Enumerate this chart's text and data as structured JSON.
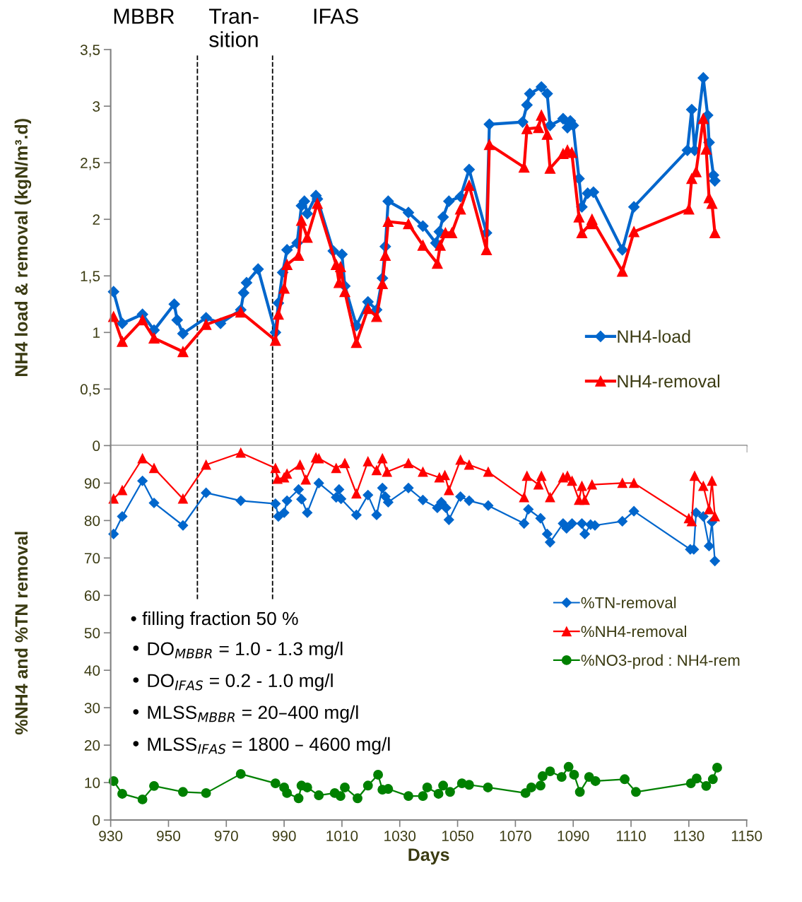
{
  "chart_data": [
    {
      "type": "line",
      "ylabel": "NH4 load & removal (kgN/m³.d)",
      "xlim": [
        930,
        1150
      ],
      "xticks": [
        930,
        950,
        970,
        990,
        1010,
        1030,
        1050,
        1070,
        1090,
        1110,
        1130,
        1150
      ],
      "ylim": [
        0,
        3.5
      ],
      "yticks": [
        0,
        {
          "value": 0.5,
          "label": "0,5"
        },
        1,
        {
          "value": 1.5,
          "label": "1,5"
        },
        2,
        {
          "value": 2.5,
          "label": "2,5"
        },
        3,
        {
          "value": 3.5,
          "label": "3,5"
        }
      ],
      "tick_labels": "y",
      "grid": false,
      "legend": "lower right",
      "line_style": "solid",
      "annotations": [
        "MBBR",
        "Tran-\nsition",
        "IFAS"
      ],
      "ref_lines": [
        {
          "axis": "x",
          "value": 960,
          "color": "#000000",
          "line_style": "dashed"
        },
        {
          "axis": "x",
          "value": 986,
          "color": "#000000",
          "line_style": "dashed"
        }
      ],
      "series": [
        {
          "name": "NH4-load",
          "color": "#0066cc",
          "marker": "diamond",
          "x": [
            931,
            934,
            941,
            945,
            952,
            953,
            955,
            963,
            968,
            975,
            976,
            977,
            981,
            987,
            988,
            989.5,
            991,
            994.5,
            996,
            997,
            998,
            1001,
            1001.5,
            1007,
            1010,
            1011,
            1015,
            1019,
            1022,
            1024,
            1025,
            1026,
            1033,
            1038,
            1042.5,
            1043.7,
            1045,
            1047,
            1051,
            1054,
            1060,
            1061,
            1072.5,
            1074,
            1075,
            1079,
            1081,
            1082,
            1086.5,
            1088,
            1089,
            1090,
            1092,
            1093,
            1095,
            1097,
            1107,
            1111,
            1129.5,
            1131,
            1132,
            1135,
            1136.5,
            1137,
            1138.5,
            1139
          ],
          "values": [
            1.36,
            1.08,
            1.16,
            1.02,
            1.25,
            1.11,
            0.99,
            1.13,
            1.08,
            1.2,
            1.35,
            1.44,
            1.56,
            1.0,
            1.26,
            1.53,
            1.73,
            1.79,
            2.12,
            2.16,
            2.05,
            2.21,
            2.18,
            1.72,
            1.69,
            1.41,
            1.06,
            1.27,
            1.2,
            1.48,
            1.76,
            2.16,
            2.06,
            1.94,
            1.79,
            1.89,
            2.02,
            2.16,
            2.2,
            2.44,
            1.88,
            2.84,
            2.86,
            3.01,
            3.11,
            3.17,
            3.11,
            2.83,
            2.89,
            2.81,
            2.87,
            2.83,
            2.36,
            2.11,
            2.23,
            2.24,
            1.73,
            2.11,
            2.61,
            2.97,
            2.61,
            3.25,
            2.92,
            2.68,
            2.39,
            2.34
          ]
        },
        {
          "name": "NH4-removal",
          "color": "#ff0000",
          "marker": "triangle",
          "x": [
            931,
            934,
            941,
            945,
            955,
            963,
            975,
            987,
            988,
            990,
            991,
            995,
            996,
            998,
            1001.5,
            1008,
            1009,
            1009.5,
            1011,
            1015,
            1019,
            1022,
            1024,
            1025,
            1026,
            1033,
            1038,
            1043,
            1044,
            1045.8,
            1048,
            1051,
            1054,
            1060,
            1061,
            1073,
            1074,
            1078,
            1079,
            1081,
            1082,
            1086.5,
            1088,
            1089.5,
            1092,
            1093,
            1096,
            1096.5,
            1107,
            1111,
            1130,
            1131,
            1132.5,
            1135,
            1136,
            1137,
            1138,
            1139
          ],
          "values": [
            1.14,
            0.92,
            1.11,
            0.95,
            0.83,
            1.07,
            1.18,
            0.93,
            1.16,
            1.39,
            1.6,
            1.68,
            1.99,
            1.84,
            2.14,
            1.6,
            1.44,
            1.58,
            1.36,
            0.91,
            1.21,
            1.14,
            1.43,
            1.68,
            1.98,
            1.96,
            1.77,
            1.61,
            1.77,
            1.88,
            1.88,
            2.09,
            2.3,
            1.73,
            2.66,
            2.46,
            2.8,
            2.81,
            2.92,
            2.75,
            2.45,
            2.58,
            2.61,
            2.59,
            2.02,
            1.88,
            1.96,
            2.0,
            1.54,
            1.89,
            2.09,
            2.36,
            2.42,
            2.89,
            2.62,
            2.19,
            2.14,
            1.88
          ]
        }
      ]
    },
    {
      "type": "line",
      "xlabel": "Days",
      "ylabel": "%NH4 and %TN removal",
      "xlim": [
        930,
        1150
      ],
      "xticks": [
        930,
        950,
        970,
        990,
        1010,
        1030,
        1050,
        1070,
        1090,
        1110,
        1130,
        1150
      ],
      "ylim": [
        0,
        100
      ],
      "yticks": [
        0,
        10,
        20,
        30,
        40,
        50,
        60,
        70,
        80,
        90
      ],
      "grid": false,
      "legend": "right",
      "line_style": "solid",
      "annotations": [
        "• filling fraction 50 %",
        "• DO$_{MBBR}$ = 1.0 - 1.3 mg/l",
        "• DO$_{IFAS}$ = 0.2 - 1.0 mg/l",
        "• MLSS$_{MBBR}$ = 20–400 mg/l",
        "• MLSS$_{IFAS}$ = 1800 – 4600 mg/l"
      ],
      "ref_lines": [
        {
          "axis": "x",
          "value": 960,
          "color": "#000000",
          "line_style": "dashed"
        },
        {
          "axis": "x",
          "value": 986,
          "color": "#000000",
          "line_style": "dashed"
        }
      ],
      "series": [
        {
          "name": "%TN-removal",
          "color": "#0066cc",
          "marker": "diamond",
          "x": [
            931,
            934,
            941,
            945,
            955,
            963,
            975,
            987,
            988,
            990,
            991,
            995,
            996,
            998,
            1002,
            1008,
            1009,
            1009.7,
            1015,
            1019,
            1022,
            1024,
            1025,
            1026,
            1033,
            1038,
            1043,
            1044.4,
            1046,
            1047,
            1051,
            1054,
            1060.6,
            1073,
            1074.5,
            1078.7,
            1081,
            1082,
            1086.5,
            1087.7,
            1089.6,
            1093,
            1094,
            1096,
            1097.5,
            1107,
            1111,
            1130.5,
            1131.7,
            1132.5,
            1135,
            1137,
            1138,
            1139
          ],
          "values": [
            76.4,
            81.1,
            90.6,
            84.7,
            78.7,
            87.4,
            85.3,
            84.5,
            81.1,
            82.1,
            85.3,
            88.3,
            85.7,
            82.1,
            90,
            86.2,
            88.3,
            85.8,
            81.5,
            86.8,
            81.5,
            88.7,
            86.4,
            84.9,
            88.7,
            85.5,
            83.4,
            84.9,
            83.4,
            80.2,
            86.4,
            85.3,
            84,
            79.2,
            83,
            80.6,
            76.4,
            74.2,
            79.2,
            77.9,
            79.2,
            79.2,
            76.4,
            78.9,
            78.7,
            79.8,
            82.5,
            72.3,
            72.3,
            82.1,
            81.1,
            73.2,
            79.6,
            69.2
          ]
        },
        {
          "name": "%NH4-removal",
          "color": "#ff0000",
          "marker": "triangle",
          "x": [
            931,
            934,
            941,
            945,
            955,
            963,
            975,
            987,
            987.7,
            990,
            991,
            995.5,
            997.5,
            1001,
            1002,
            1008,
            1011,
            1015,
            1019,
            1022,
            1024,
            1025.6,
            1033,
            1038,
            1043.7,
            1045.6,
            1047,
            1051,
            1054,
            1060.6,
            1073,
            1074,
            1078,
            1079,
            1082,
            1086.5,
            1088,
            1089.6,
            1092,
            1093,
            1094,
            1096.5,
            1107,
            1111,
            1130,
            1131,
            1132,
            1135,
            1137,
            1138,
            1139
          ],
          "values": [
            85.8,
            88.1,
            96.6,
            94,
            85.8,
            94.9,
            98.1,
            94,
            91.1,
            91.5,
            92.5,
            94.9,
            90.9,
            96.8,
            96.6,
            94,
            95.3,
            87.2,
            95.8,
            93.4,
            96.6,
            93,
            95.3,
            93,
            91.5,
            92.1,
            88.1,
            96.2,
            94.9,
            93,
            86.2,
            91.9,
            89.6,
            91.9,
            86.2,
            91.5,
            91.9,
            90.6,
            85.5,
            89.2,
            85.5,
            89.6,
            90,
            90,
            80.6,
            79.8,
            91.9,
            89.2,
            83,
            90.6,
            81.1
          ]
        },
        {
          "name": "%NO3-prod : NH4-rem",
          "color": "#008000",
          "marker": "circle",
          "x": [
            931,
            934,
            941,
            945,
            955,
            963,
            975,
            987,
            990,
            991,
            995,
            996,
            998,
            1002,
            1007.5,
            1009.5,
            1011,
            1015.4,
            1019,
            1022.5,
            1024,
            1026,
            1033,
            1038,
            1039.5,
            1043.4,
            1045,
            1047.4,
            1051.5,
            1054,
            1060.5,
            1073.5,
            1075.5,
            1078.7,
            1079.4,
            1082,
            1086,
            1088.4,
            1090.3,
            1092.3,
            1095.5,
            1097.7,
            1107.8,
            1111.7,
            1130.7,
            1132.7,
            1136,
            1138.3,
            1139.8
          ],
          "values": [
            10.4,
            7,
            5.5,
            9.1,
            7.5,
            7.2,
            12.3,
            9.8,
            8.7,
            7.2,
            5.8,
            9.2,
            8.7,
            6.6,
            7.2,
            6.4,
            8.7,
            5.8,
            9.2,
            12.1,
            8.1,
            8.3,
            6.4,
            6.4,
            8.7,
            7,
            9.2,
            7.5,
            9.8,
            9.4,
            8.7,
            7.2,
            8.7,
            9.2,
            11.7,
            13,
            11.5,
            14.2,
            12.1,
            7.5,
            11.5,
            10.4,
            10.9,
            7.5,
            9.8,
            11.1,
            9.1,
            10.9,
            14
          ]
        }
      ]
    }
  ]
}
